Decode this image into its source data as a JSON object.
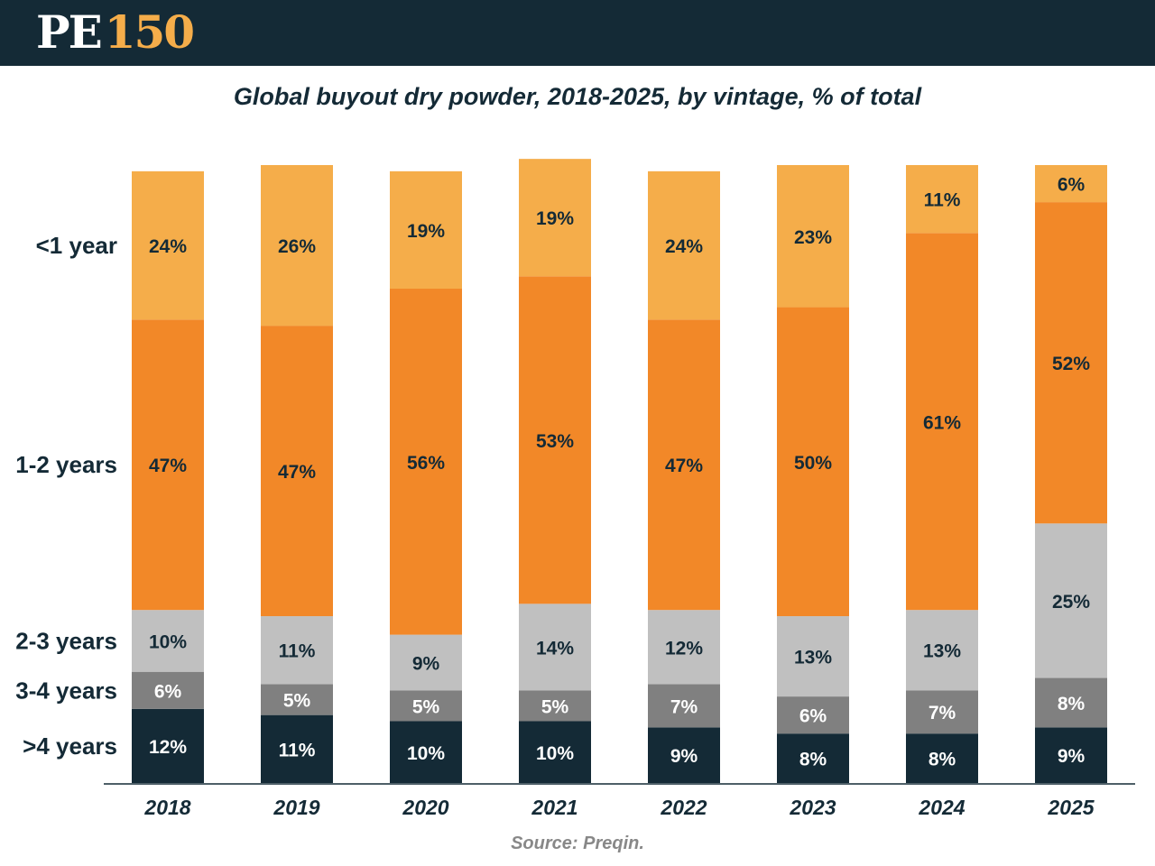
{
  "header": {
    "logo_pe": "PE",
    "logo_num": "150"
  },
  "title": "Global buyout dry powder, 2018-2025, by vintage, % of total",
  "source": "Source: Preqin.",
  "colors": {
    "header_bg": "#142a36",
    "logo_accent": "#f5ad4a",
    "lt1": "#f5ad4a",
    "y12": "#f28828",
    "y23": "#c0c0c0",
    "y34": "#808080",
    "gt4": "#142a36"
  },
  "chart_data": {
    "type": "bar",
    "stacked": true,
    "title": "Global buyout dry powder, 2018-2025, by vintage, % of total",
    "xlabel": "",
    "ylabel": "",
    "categories": [
      "2018",
      "2019",
      "2020",
      "2021",
      "2022",
      "2023",
      "2024",
      "2025"
    ],
    "series": [
      {
        "key": "gt4",
        "name": ">4 years",
        "values": [
          12,
          11,
          10,
          10,
          9,
          8,
          8,
          9
        ],
        "labels": [
          "12%",
          "11%",
          "10%",
          "10%",
          "9%",
          "8%",
          "8%",
          "9%"
        ]
      },
      {
        "key": "y34",
        "name": "3-4 years",
        "values": [
          6,
          5,
          5,
          5,
          7,
          6,
          7,
          8
        ],
        "labels": [
          "6%",
          "5%",
          "5%",
          "5%",
          "7%",
          "6%",
          "7%",
          "8%"
        ]
      },
      {
        "key": "y23",
        "name": "2-3 years",
        "values": [
          10,
          11,
          9,
          14,
          12,
          13,
          13,
          25
        ],
        "labels": [
          "10%",
          "11%",
          "9%",
          "14%",
          "12%",
          "13%",
          "13%",
          "25%"
        ]
      },
      {
        "key": "y12",
        "name": "1-2 years",
        "values": [
          47,
          47,
          56,
          53,
          47,
          50,
          61,
          52
        ],
        "labels": [
          "47%",
          "47%",
          "56%",
          "53%",
          "47%",
          "50%",
          "61%",
          "52%"
        ]
      },
      {
        "key": "lt1",
        "name": "<1 year",
        "values": [
          24,
          26,
          19,
          19,
          24,
          23,
          11,
          6
        ],
        "labels": [
          "24%",
          "26%",
          "19%",
          "19%",
          "24%",
          "23%",
          "11%",
          "6%"
        ]
      }
    ],
    "row_labels": [
      "<1 year",
      "1-2 years",
      "2-3 years",
      "3-4 years",
      ">4 years"
    ],
    "label_colors": {
      "gt4": "#ffffff",
      "y34": "#ffffff",
      "y23": "#142a36",
      "y12": "#142a36",
      "lt1": "#142a36"
    }
  }
}
